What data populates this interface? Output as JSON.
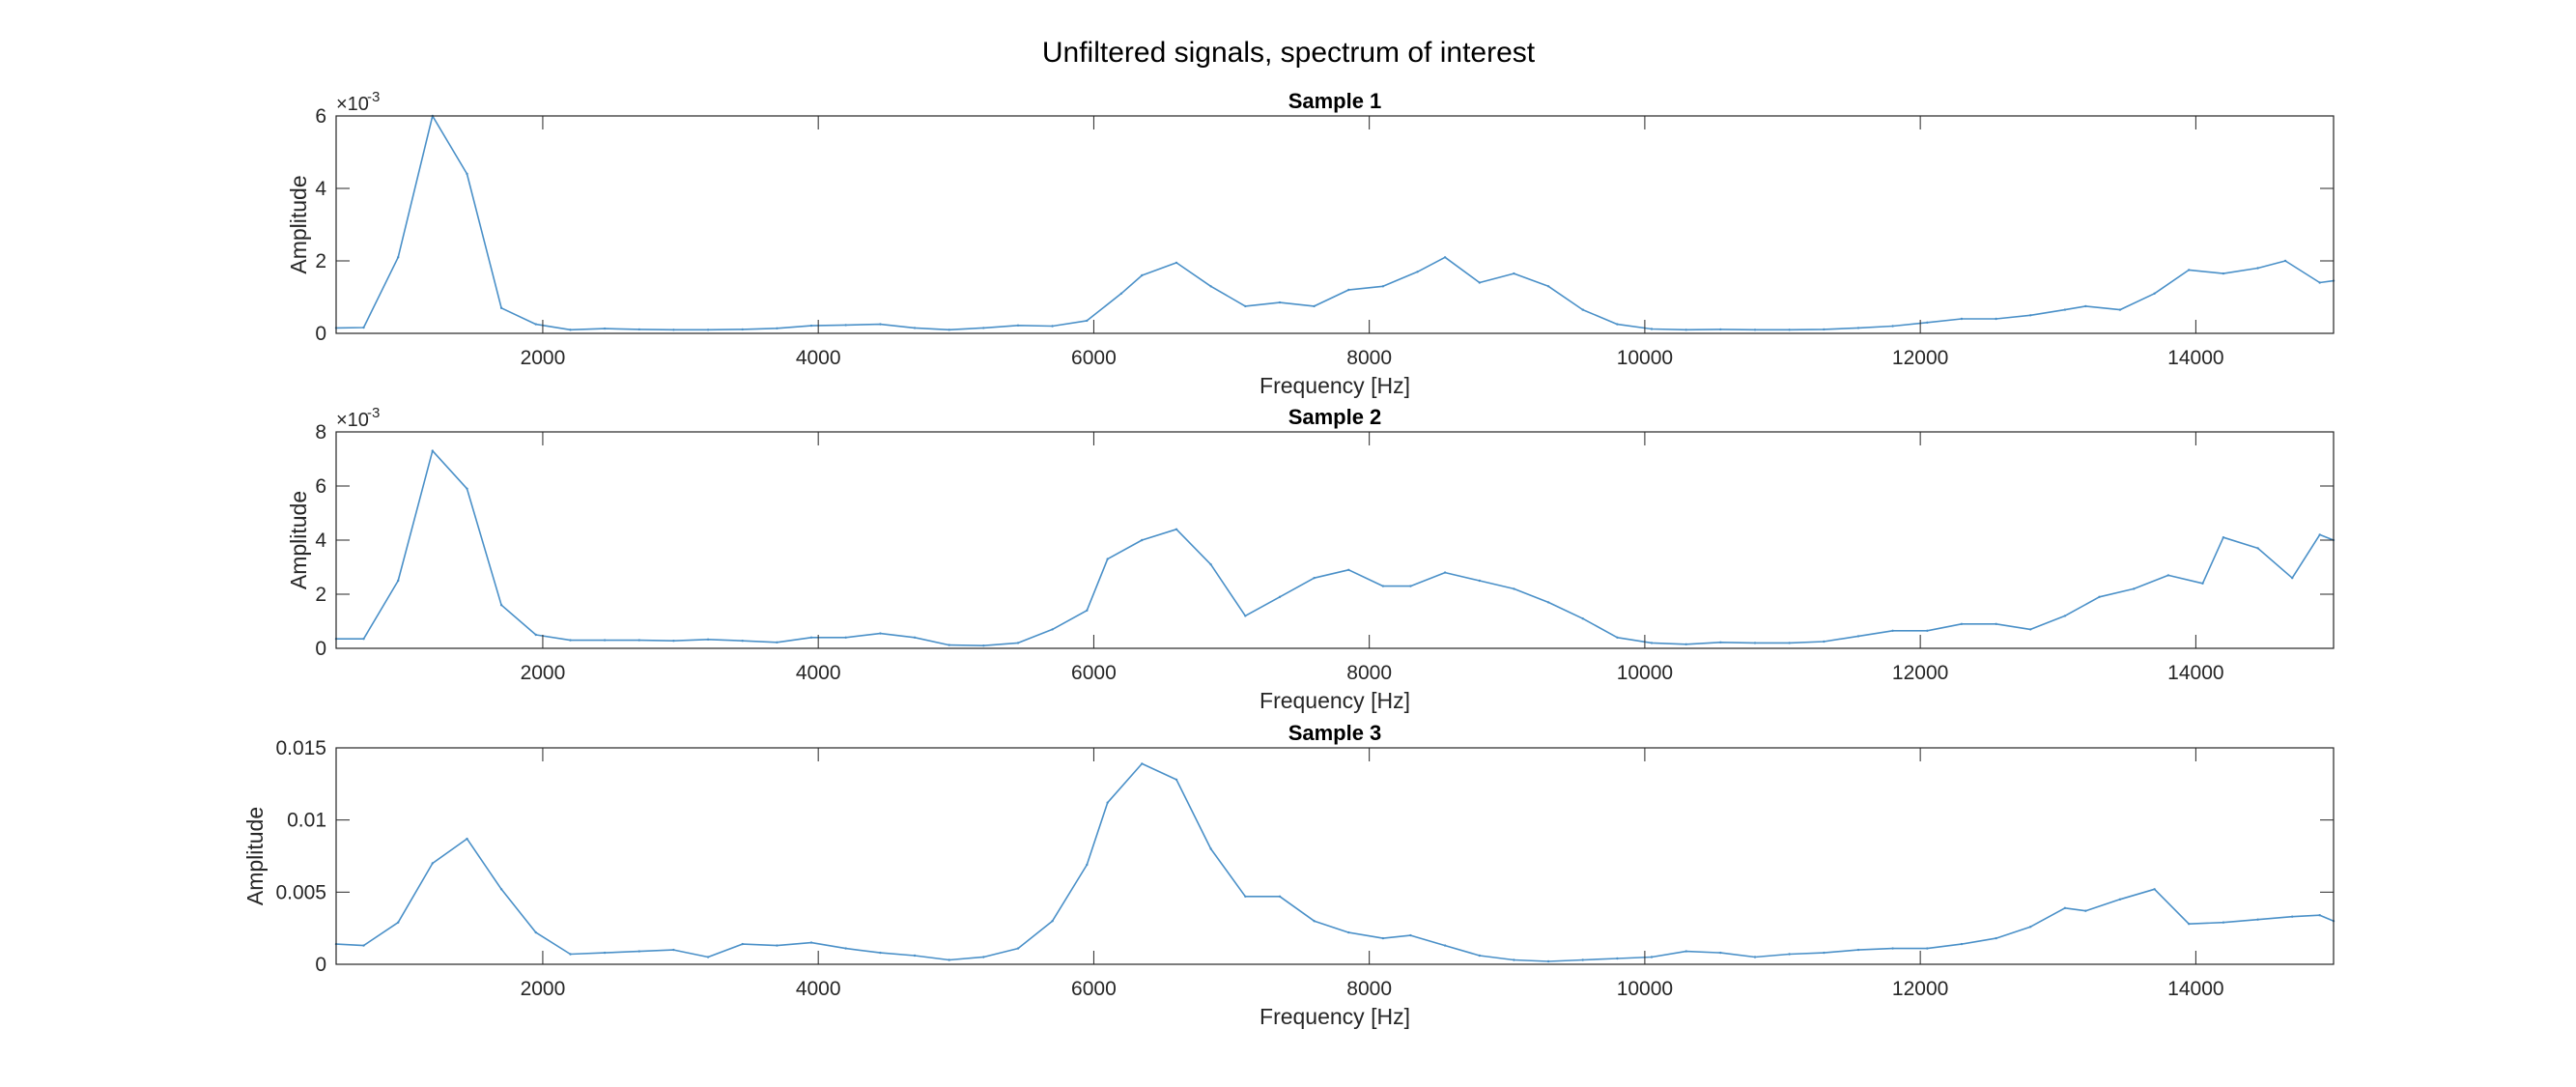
{
  "figure": {
    "title": "Unfiltered signals, spectrum of interest"
  },
  "colors": {
    "line": "#4a90c8",
    "axis": "#262626",
    "background": "#ffffff"
  },
  "chart_data": [
    {
      "type": "line",
      "title": "Sample 1",
      "xlabel": "Frequency [Hz]",
      "ylabel": "Amplitude",
      "xlim": [
        500,
        15000
      ],
      "ylim": [
        0,
        0.006
      ],
      "exponent_label": "×10",
      "exponent_power": "-3",
      "xticks": [
        2000,
        4000,
        6000,
        8000,
        10000,
        12000,
        14000
      ],
      "xtick_labels": [
        "2000",
        "4000",
        "6000",
        "8000",
        "10000",
        "12000",
        "14000"
      ],
      "yticks": [
        0,
        0.002,
        0.004,
        0.006
      ],
      "ytick_labels": [
        "0",
        "2",
        "4",
        "6"
      ],
      "grid": false,
      "series": [
        {
          "x": [
            500,
            700,
            950,
            1200,
            1450,
            1700,
            1950,
            2200,
            2450,
            2700,
            2950,
            3200,
            3450,
            3700,
            3950,
            4200,
            4450,
            4700,
            4950,
            5200,
            5450,
            5700,
            5950,
            6200,
            6350,
            6600,
            6850,
            7100,
            7350,
            7600,
            7850,
            8100,
            8350,
            8550,
            8800,
            9050,
            9300,
            9550,
            9800,
            10050,
            10300,
            10550,
            10800,
            11050,
            11300,
            11550,
            11800,
            12050,
            12300,
            12550,
            12800,
            13050,
            13200,
            13450,
            13700,
            13950,
            14200,
            14450,
            14650,
            14900,
            15000
          ],
          "y": [
            0.00015,
            0.00016,
            0.0021,
            0.006,
            0.0044,
            0.0007,
            0.00025,
            0.0001,
            0.00013,
            0.00011,
            0.0001,
            0.0001,
            0.00011,
            0.00014,
            0.00021,
            0.00023,
            0.00025,
            0.00015,
            0.0001,
            0.00015,
            0.00022,
            0.0002,
            0.00035,
            0.0011,
            0.0016,
            0.00195,
            0.0013,
            0.00075,
            0.00085,
            0.00075,
            0.0012,
            0.0013,
            0.0017,
            0.0021,
            0.0014,
            0.00165,
            0.0013,
            0.00065,
            0.00025,
            0.00012,
            0.0001,
            0.00011,
            0.0001,
            0.0001,
            0.00011,
            0.00015,
            0.0002,
            0.0003,
            0.0004,
            0.0004,
            0.0005,
            0.00065,
            0.00075,
            0.00065,
            0.0011,
            0.00175,
            0.00165,
            0.0018,
            0.002,
            0.0014,
            0.00145
          ]
        }
      ]
    },
    {
      "type": "line",
      "title": "Sample 2",
      "xlabel": "Frequency [Hz]",
      "ylabel": "Amplitude",
      "xlim": [
        500,
        15000
      ],
      "ylim": [
        0,
        0.008
      ],
      "exponent_label": "×10",
      "exponent_power": "-3",
      "xticks": [
        2000,
        4000,
        6000,
        8000,
        10000,
        12000,
        14000
      ],
      "xtick_labels": [
        "2000",
        "4000",
        "6000",
        "8000",
        "10000",
        "12000",
        "14000"
      ],
      "yticks": [
        0,
        0.002,
        0.004,
        0.006,
        0.008
      ],
      "ytick_labels": [
        "0",
        "2",
        "4",
        "6",
        "8"
      ],
      "grid": false,
      "series": [
        {
          "x": [
            500,
            700,
            950,
            1200,
            1450,
            1700,
            1950,
            2200,
            2450,
            2700,
            2950,
            3200,
            3450,
            3700,
            3950,
            4200,
            4450,
            4700,
            4950,
            5200,
            5450,
            5700,
            5950,
            6100,
            6350,
            6600,
            6850,
            7100,
            7350,
            7600,
            7850,
            8100,
            8300,
            8550,
            8800,
            9050,
            9300,
            9550,
            9800,
            10050,
            10300,
            10550,
            10800,
            11050,
            11300,
            11550,
            11800,
            12050,
            12300,
            12550,
            12800,
            13050,
            13300,
            13550,
            13800,
            14050,
            14200,
            14450,
            14700,
            14900,
            15000
          ],
          "y": [
            0.00035,
            0.00035,
            0.0025,
            0.0073,
            0.0059,
            0.0016,
            0.0005,
            0.0003,
            0.0003,
            0.0003,
            0.00028,
            0.00033,
            0.00028,
            0.00022,
            0.0004,
            0.0004,
            0.00055,
            0.0004,
            0.00012,
            0.0001,
            0.0002,
            0.0007,
            0.0014,
            0.0033,
            0.004,
            0.0044,
            0.0031,
            0.0012,
            0.0019,
            0.0026,
            0.0029,
            0.0023,
            0.0023,
            0.0028,
            0.0025,
            0.0022,
            0.0017,
            0.0011,
            0.0004,
            0.0002,
            0.00015,
            0.00022,
            0.0002,
            0.0002,
            0.00025,
            0.00045,
            0.00065,
            0.00065,
            0.0009,
            0.0009,
            0.0007,
            0.0012,
            0.0019,
            0.0022,
            0.0027,
            0.0024,
            0.0041,
            0.0037,
            0.0026,
            0.0042,
            0.004
          ]
        }
      ]
    },
    {
      "type": "line",
      "title": "Sample 3",
      "xlabel": "Frequency [Hz]",
      "ylabel": "Amplitude",
      "xlim": [
        500,
        15000
      ],
      "ylim": [
        0,
        0.015
      ],
      "exponent_label": "",
      "exponent_power": "",
      "xticks": [
        2000,
        4000,
        6000,
        8000,
        10000,
        12000,
        14000
      ],
      "xtick_labels": [
        "2000",
        "4000",
        "6000",
        "8000",
        "10000",
        "12000",
        "14000"
      ],
      "yticks": [
        0,
        0.005,
        0.01,
        0.015
      ],
      "ytick_labels": [
        "0",
        "0.005",
        "0.01",
        "0.015"
      ],
      "grid": false,
      "series": [
        {
          "x": [
            500,
            700,
            950,
            1200,
            1450,
            1700,
            1950,
            2200,
            2450,
            2700,
            2950,
            3200,
            3450,
            3700,
            3950,
            4200,
            4450,
            4700,
            4950,
            5200,
            5450,
            5700,
            5950,
            6100,
            6350,
            6600,
            6850,
            7100,
            7350,
            7600,
            7850,
            8100,
            8300,
            8550,
            8800,
            9050,
            9300,
            9550,
            9800,
            10050,
            10300,
            10550,
            10800,
            11050,
            11300,
            11550,
            11800,
            12050,
            12300,
            12550,
            12800,
            13050,
            13200,
            13450,
            13700,
            13950,
            14200,
            14450,
            14700,
            14900,
            15000
          ],
          "y": [
            0.0014,
            0.0013,
            0.0029,
            0.007,
            0.0087,
            0.0052,
            0.0022,
            0.0007,
            0.0008,
            0.0009,
            0.001,
            0.0005,
            0.0014,
            0.0013,
            0.0015,
            0.0011,
            0.0008,
            0.0006,
            0.0003,
            0.0005,
            0.0011,
            0.003,
            0.0069,
            0.0112,
            0.0139,
            0.0128,
            0.008,
            0.0047,
            0.0047,
            0.003,
            0.0022,
            0.0018,
            0.002,
            0.0013,
            0.0006,
            0.0003,
            0.0002,
            0.0003,
            0.0004,
            0.0005,
            0.0009,
            0.0008,
            0.0005,
            0.0007,
            0.0008,
            0.001,
            0.0011,
            0.0011,
            0.0014,
            0.0018,
            0.0026,
            0.0039,
            0.0037,
            0.0045,
            0.0052,
            0.0028,
            0.0029,
            0.0031,
            0.0033,
            0.0034,
            0.003
          ]
        }
      ]
    }
  ]
}
